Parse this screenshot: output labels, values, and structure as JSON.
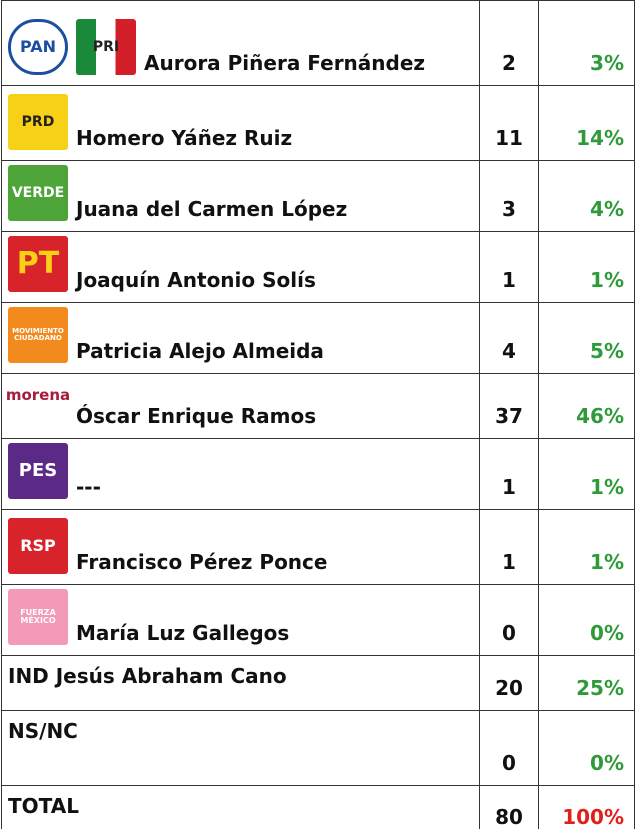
{
  "table": {
    "rows": [
      {
        "logos": [
          "PAN",
          "PRI"
        ],
        "name": "Aurora Piñera Fernández",
        "count": "2",
        "percent": "3%"
      },
      {
        "logos": [
          "PRD"
        ],
        "name": "Homero Yáñez Ruiz",
        "count": "11",
        "percent": "14%"
      },
      {
        "logos": [
          "VERDE"
        ],
        "name": "Juana del Carmen López",
        "count": "3",
        "percent": "4%"
      },
      {
        "logos": [
          "PT"
        ],
        "name": "Joaquín Antonio Solís",
        "count": "1",
        "percent": "1%"
      },
      {
        "logos": [
          "MOVIMIENTO CIUDADANO"
        ],
        "name": "Patricia Alejo Almeida",
        "count": "4",
        "percent": "5%"
      },
      {
        "logos": [
          "morena"
        ],
        "name": "Óscar Enrique Ramos",
        "count": "37",
        "percent": "46%"
      },
      {
        "logos": [
          "PES"
        ],
        "name": "---",
        "count": "1",
        "percent": "1%"
      },
      {
        "logos": [
          "RSP"
        ],
        "name": "Francisco Pérez Ponce",
        "count": "1",
        "percent": "1%"
      },
      {
        "logos": [
          "FUERZA MÉXICO"
        ],
        "name": "María Luz Gallegos",
        "count": "0",
        "percent": "0%"
      },
      {
        "name": "IND Jesús Abraham Cano",
        "count": "20",
        "percent": "25%"
      },
      {
        "name": "NS/NC",
        "count": "0",
        "percent": "0%"
      },
      {
        "name": "TOTAL",
        "count": "80",
        "percent": "100%"
      }
    ]
  }
}
